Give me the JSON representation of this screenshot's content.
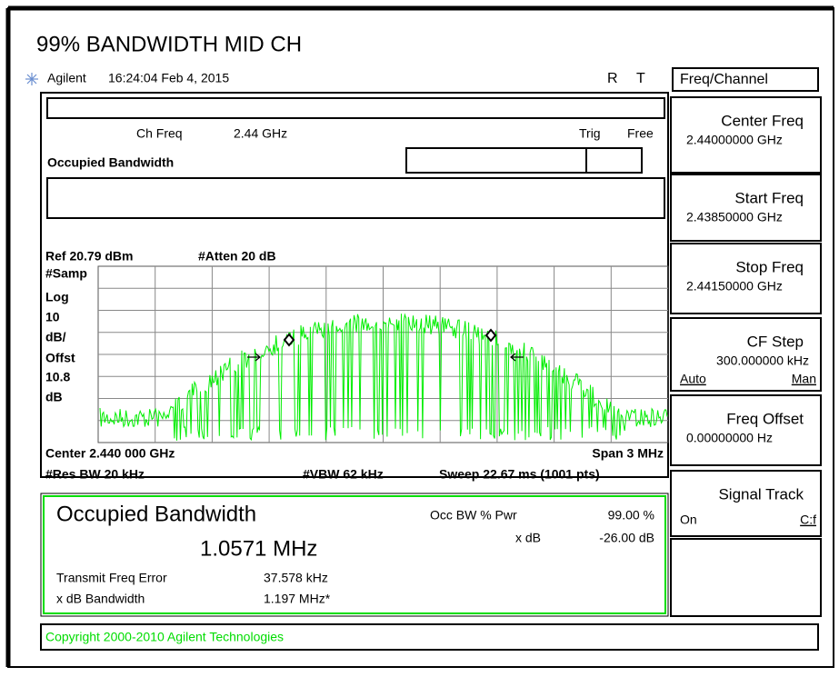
{
  "title": "99% BANDWIDTH MID CH",
  "status": {
    "brand": "Agilent",
    "time": "16:24:04 Feb 4, 2015",
    "r": "R",
    "t": "T"
  },
  "menu": {
    "title": "Freq/Channel",
    "keys": [
      {
        "label": "Center Freq",
        "value": "2.44000000 GHz"
      },
      {
        "label": "Start Freq",
        "value": "2.43850000 GHz"
      },
      {
        "label": "Stop Freq",
        "value": "2.44150000 GHz"
      },
      {
        "label": "CF Step",
        "value": "300.000000 kHz",
        "left": "Auto",
        "right": "Man"
      },
      {
        "label": "Freq Offset",
        "value": "0.00000000 Hz"
      },
      {
        "label": "Signal Track",
        "left": "On",
        "right": "C:f"
      }
    ]
  },
  "header": {
    "ch_freq_label": "Ch Freq",
    "ch_freq": "2.44 GHz",
    "trig": "Trig",
    "free": "Free",
    "mode": "Occupied Bandwidth"
  },
  "plot": {
    "ref": "Ref 20.79 dBm",
    "atten": "#Atten 20 dB",
    "side": [
      "#Samp",
      "Log",
      "10",
      "dB/",
      "Offst",
      "10.8",
      "dB"
    ],
    "center": "Center 2.440 000 GHz",
    "span": "Span 3 MHz",
    "rbw": "#Res BW 20 kHz",
    "vbw": "#VBW 62 kHz",
    "sweep": "Sweep 22.67 ms (1001 pts)"
  },
  "result": {
    "title": "Occupied Bandwidth",
    "value": "1.0571 MHz",
    "pwr_label": "Occ BW % Pwr",
    "pwr": "99.00 %",
    "xdb_label": "x dB",
    "xdb": "-26.00 dB",
    "tfe_label": "Transmit Freq Error",
    "tfe": "37.578 kHz",
    "xbw_label": "x dB Bandwidth",
    "xbw": "1.197 MHz*"
  },
  "copyright": "Copyright 2000-2010 Agilent Technologies"
}
